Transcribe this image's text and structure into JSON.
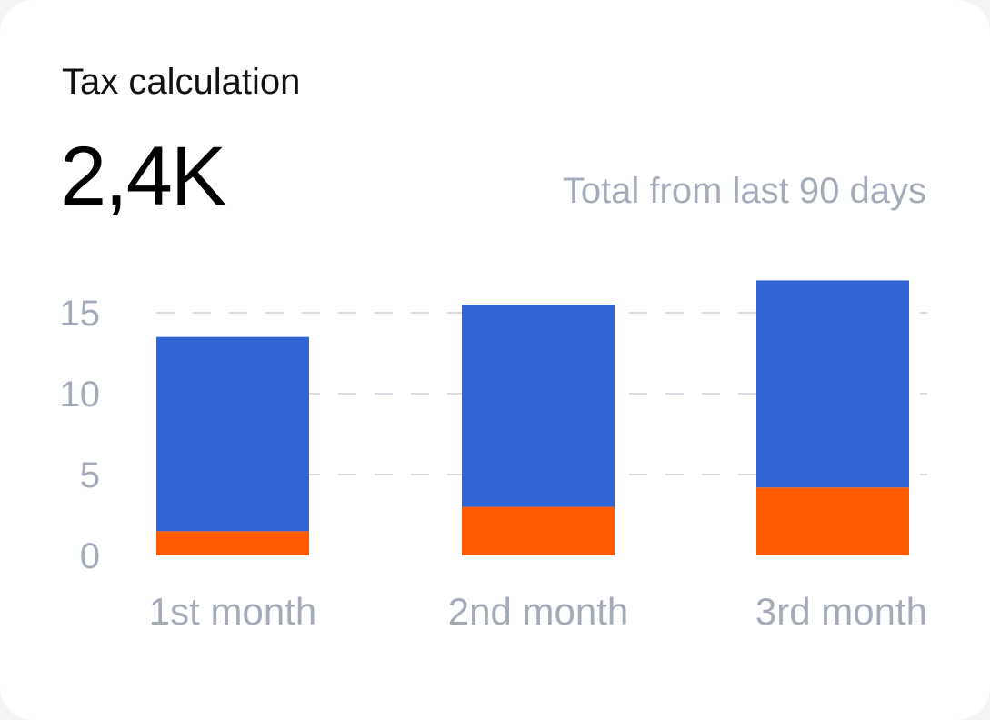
{
  "card": {
    "title": "Tax calculation",
    "kpi_value": "2,4K",
    "kpi_caption": "Total from last 90 days"
  },
  "colors": {
    "series_a": "#ff5a00",
    "series_b": "#3264d4",
    "grid": "#d9dce2",
    "muted_text": "#a4abb8"
  },
  "chart_data": {
    "type": "bar",
    "stacked": true,
    "categories": [
      "1st month",
      "2nd month",
      "3rd month"
    ],
    "series": [
      {
        "values": [
          1.5,
          3.0,
          4.2
        ],
        "color": "#ff5a00"
      },
      {
        "values": [
          12.0,
          12.5,
          12.8
        ],
        "color": "#3264d4"
      }
    ],
    "yticks": [
      0,
      5,
      10,
      15
    ],
    "ylim": [
      0,
      17.5
    ],
    "grid": true,
    "grid_style": "dashed"
  }
}
